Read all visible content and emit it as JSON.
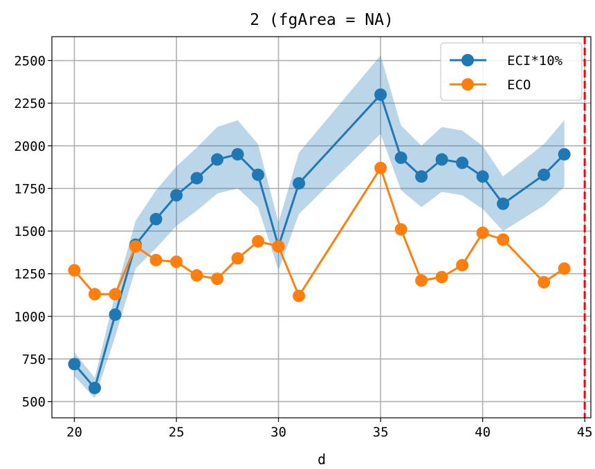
{
  "chart_data": {
    "type": "line",
    "title": "2 (fgArea = NA)",
    "xlabel": "d",
    "ylabel": "",
    "xlim": [
      18.9,
      45.3
    ],
    "ylim": [
      405,
      2640
    ],
    "xticks": [
      20,
      25,
      30,
      35,
      40,
      45
    ],
    "yticks": [
      500,
      750,
      1000,
      1250,
      1500,
      1750,
      2000,
      2250,
      2500
    ],
    "grid": true,
    "legend_position": "top-right",
    "vline": {
      "x": 45,
      "color": "#ff0000",
      "style": "dashed"
    },
    "series": [
      {
        "name": "ECI*10%",
        "color": "#1f77b4",
        "x": [
          20,
          21,
          22,
          23,
          24,
          25,
          26,
          27,
          28,
          29,
          30,
          31,
          35,
          36,
          37,
          38,
          39,
          40,
          41,
          43,
          44
        ],
        "y": [
          720,
          580,
          1010,
          1420,
          1570,
          1710,
          1810,
          1920,
          1950,
          1830,
          1410,
          1780,
          2300,
          1930,
          1820,
          1920,
          1900,
          1820,
          1660,
          1830,
          1950
        ],
        "band_lower": [
          650,
          520,
          880,
          1280,
          1400,
          1530,
          1620,
          1720,
          1750,
          1640,
          1270,
          1600,
          2070,
          1740,
          1640,
          1730,
          1710,
          1630,
          1500,
          1650,
          1760
        ],
        "band_upper": [
          790,
          640,
          1130,
          1560,
          1740,
          1880,
          1990,
          2110,
          2150,
          2010,
          1550,
          1960,
          2530,
          2120,
          2000,
          2110,
          2090,
          2000,
          1820,
          2010,
          2150
        ]
      },
      {
        "name": "ECO",
        "color": "#ff7f0e",
        "x": [
          20,
          21,
          22,
          23,
          24,
          25,
          26,
          27,
          28,
          29,
          30,
          31,
          35,
          36,
          37,
          38,
          39,
          40,
          41,
          43,
          44
        ],
        "y": [
          1270,
          1130,
          1130,
          1410,
          1330,
          1320,
          1240,
          1220,
          1340,
          1440,
          1410,
          1120,
          1870,
          1510,
          1210,
          1230,
          1300,
          1490,
          1450,
          1200,
          1280
        ]
      }
    ]
  }
}
